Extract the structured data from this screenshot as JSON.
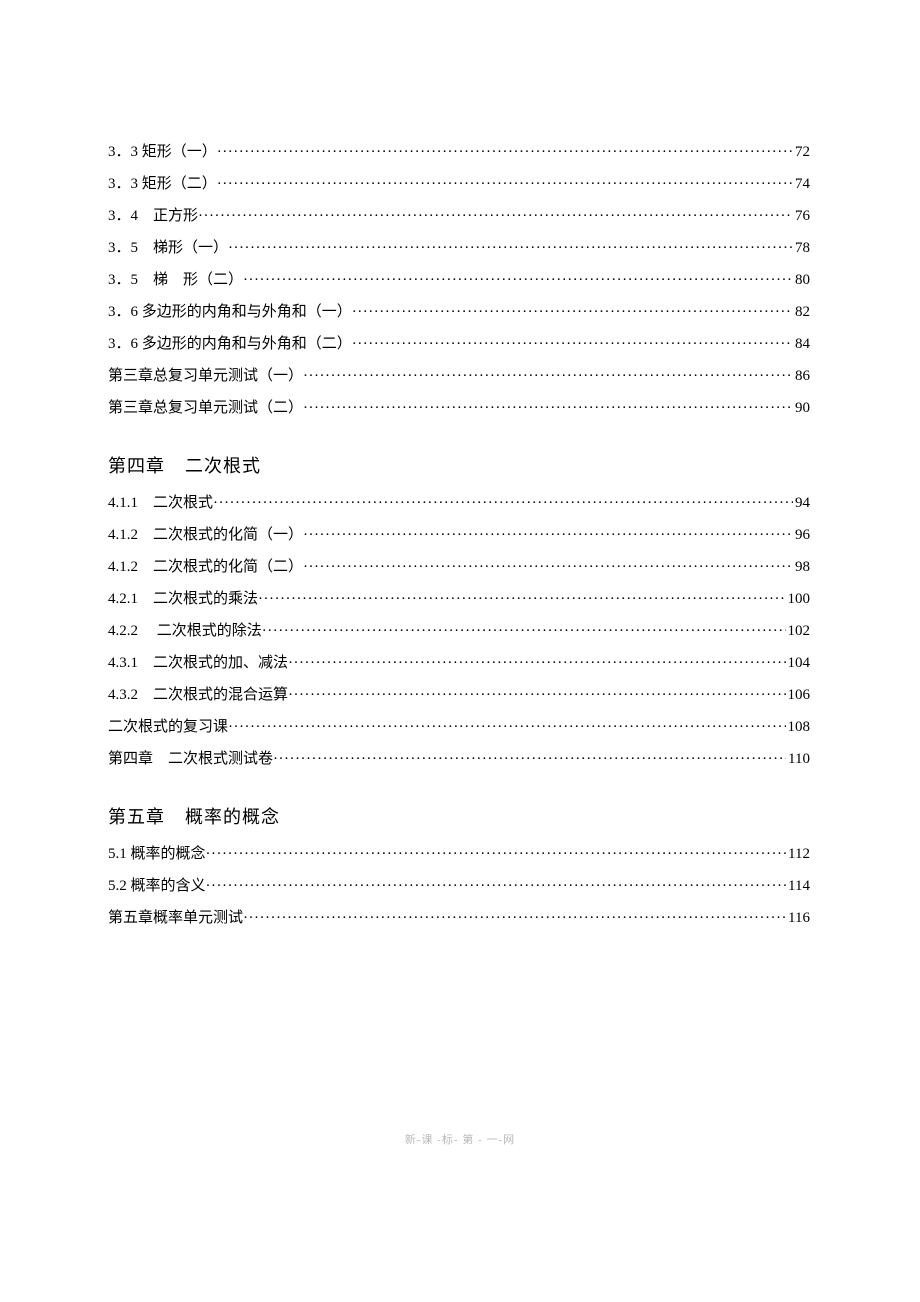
{
  "sections": [
    {
      "title": null,
      "entries": [
        {
          "label": "3．3 矩形（一）",
          "page": "72"
        },
        {
          "label": "3．3 矩形（二）",
          "page": "74"
        },
        {
          "label": "3．4　正方形",
          "page": "76"
        },
        {
          "label": "3．5　梯形（一）",
          "page": "78"
        },
        {
          "label": "3．5　梯　形（二）",
          "page": "80"
        },
        {
          "label": "3．6 多边形的内角和与外角和（一）",
          "page": "82"
        },
        {
          "label": "3．6 多边形的内角和与外角和（二）",
          "page": "84"
        },
        {
          "label": "第三章总复习单元测试（一）",
          "page": "86"
        },
        {
          "label": "第三章总复习单元测试（二）",
          "page": "90"
        }
      ]
    },
    {
      "title": {
        "part1": "第四章",
        "part2": "二次根式"
      },
      "entries": [
        {
          "label": "4.1.1　二次根式",
          "page": "94"
        },
        {
          "label": "4.1.2　二次根式的化简（一）",
          "page": "96"
        },
        {
          "label": "4.1.2　二次根式的化简（二）",
          "page": "98"
        },
        {
          "label": "4.2.1　二次根式的乘法",
          "page": "100"
        },
        {
          "label": "4.2.2　 二次根式的除法",
          "page": "102"
        },
        {
          "label": "4.3.1　二次根式的加、减法",
          "page": "104"
        },
        {
          "label": "4.3.2　二次根式的混合运算",
          "page": "106"
        },
        {
          "label": "二次根式的复习课",
          "page": "108"
        },
        {
          "label": "第四章　二次根式测试卷",
          "page": "110"
        }
      ]
    },
    {
      "title": {
        "part1": "第五章",
        "part2": "概率的概念"
      },
      "entries": [
        {
          "label": "5.1 概率的概念",
          "page": "112"
        },
        {
          "label": "5.2 概率的含义",
          "page": "114"
        },
        {
          "label": "第五章概率单元测试",
          "page": "116"
        }
      ]
    }
  ],
  "footer": "新-课 -标- 第 - 一-网"
}
